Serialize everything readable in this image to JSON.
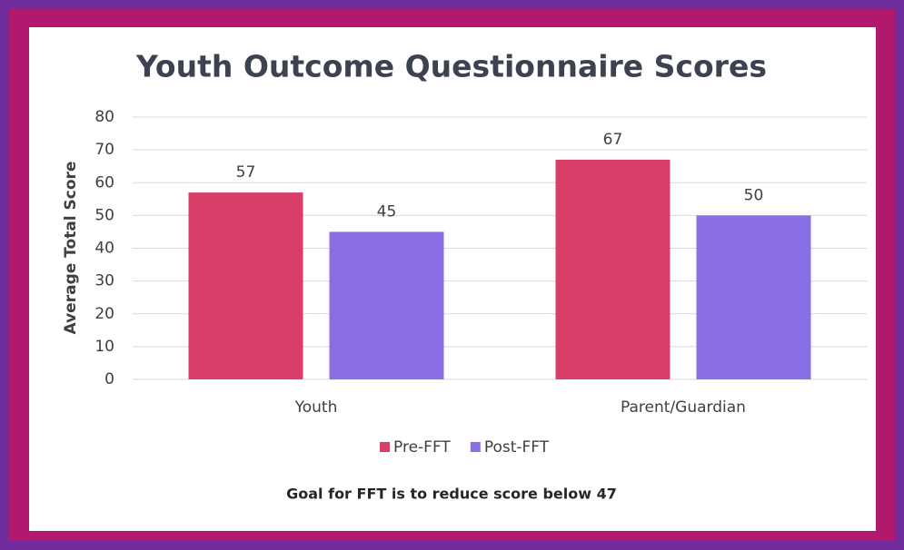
{
  "chart_data": {
    "type": "bar",
    "title": "Youth Outcome Questionnaire Scores",
    "y_label": "Average Total Score",
    "categories": [
      "Youth",
      "Parent/Guardian"
    ],
    "series": [
      {
        "name": "Pre-FFT",
        "color": "#d93f68",
        "values": [
          57,
          67
        ]
      },
      {
        "name": "Post-FFT",
        "color": "#8a6ee3",
        "values": [
          45,
          50
        ]
      }
    ],
    "ylim": [
      0,
      80
    ],
    "yticks": [
      0,
      10,
      20,
      30,
      40,
      50,
      60,
      70,
      80
    ],
    "grid": true,
    "legend": "bottom",
    "annotation": "Goal for FFT is to reduce score below 47"
  }
}
